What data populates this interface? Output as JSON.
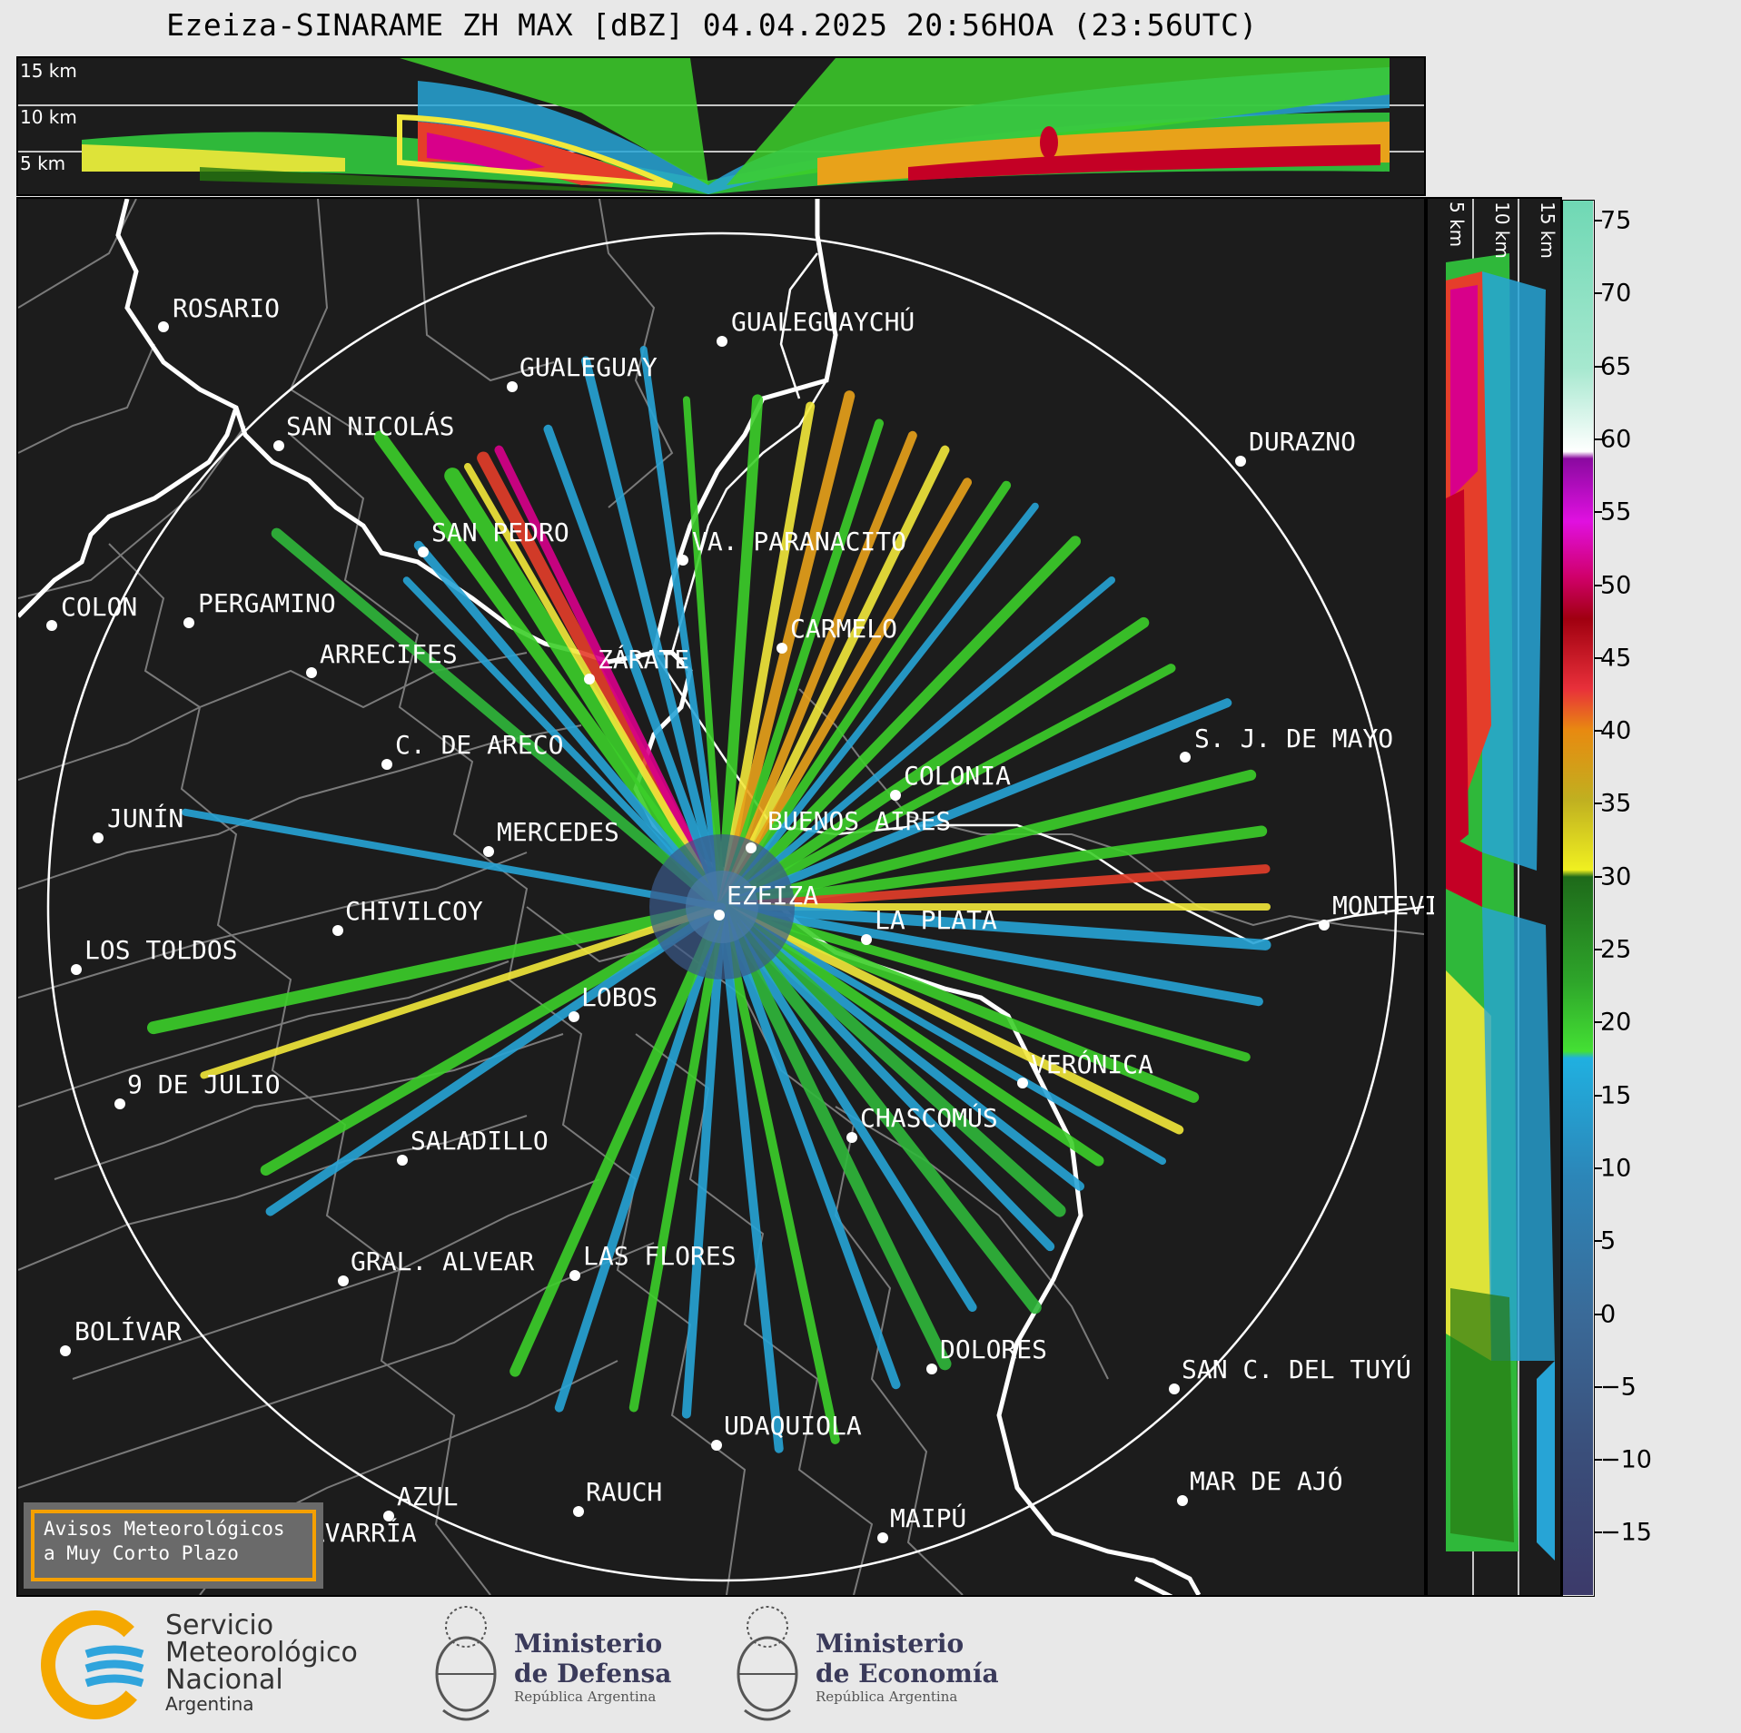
{
  "title": "Ezeiza-SINARAME ZH MAX [dBZ] 04.04.2025 20:56HOA (23:56UTC)",
  "altitude_labels": [
    "15 km",
    "10 km",
    "5 km"
  ],
  "colorbar": {
    "ticks": [
      "75",
      "70",
      "65",
      "60",
      "55",
      "50",
      "45",
      "40",
      "35",
      "30",
      "25",
      "20",
      "15",
      "10",
      "5",
      "0",
      "−5",
      "−10",
      "−15"
    ]
  },
  "cities": [
    {
      "name": "ROSARIO"
    },
    {
      "name": "GUALEGUAYCHÚ"
    },
    {
      "name": "GUALEGUAY"
    },
    {
      "name": "SAN NICOLÁS"
    },
    {
      "name": "DURAZNO"
    },
    {
      "name": "SAN PEDRO"
    },
    {
      "name": "VA. PARANACITO"
    },
    {
      "name": "COLON"
    },
    {
      "name": "PERGAMINO"
    },
    {
      "name": "CARMELO"
    },
    {
      "name": "ARRECIFES"
    },
    {
      "name": "ZÁRATE"
    },
    {
      "name": "S. J. DE MAYO"
    },
    {
      "name": "C. DE ARECO"
    },
    {
      "name": "COLONIA"
    },
    {
      "name": "JUNÍN"
    },
    {
      "name": "BUENOS AIRES"
    },
    {
      "name": "MERCEDES"
    },
    {
      "name": "EZEIZA"
    },
    {
      "name": "MONTEVIDEO"
    },
    {
      "name": "CHIVILCOY"
    },
    {
      "name": "LA PLATA"
    },
    {
      "name": "LOS TOLDOS"
    },
    {
      "name": "LOBOS"
    },
    {
      "name": "VERÓNICA"
    },
    {
      "name": "9 DE JULIO"
    },
    {
      "name": "CHASCOMÚS"
    },
    {
      "name": "SALADILLO"
    },
    {
      "name": "GRAL. ALVEAR"
    },
    {
      "name": "LAS FLORES"
    },
    {
      "name": "BOLÍVAR"
    },
    {
      "name": "DOLORES"
    },
    {
      "name": "SAN C. DEL TUYÚ"
    },
    {
      "name": "UDAQUIOLA"
    },
    {
      "name": "MAR DE AJÓ"
    },
    {
      "name": "AZUL"
    },
    {
      "name": "RAUCH"
    },
    {
      "name": "OLAVARRÍA"
    },
    {
      "name": "MAIPÚ"
    }
  ],
  "alert": {
    "line1": "Avisos Meteorológicos",
    "line2": "a Muy Corto Plazo"
  },
  "logos": {
    "smn": {
      "line1": "Servicio",
      "line2": "Meteorológico",
      "line3": "Nacional",
      "line4": "Argentina"
    },
    "defensa": {
      "line1": "Ministerio",
      "line2": "de Defensa",
      "line3": "República Argentina"
    },
    "economia": {
      "line1": "Ministerio",
      "line2": "de Economía",
      "line3": "República Argentina"
    }
  }
}
